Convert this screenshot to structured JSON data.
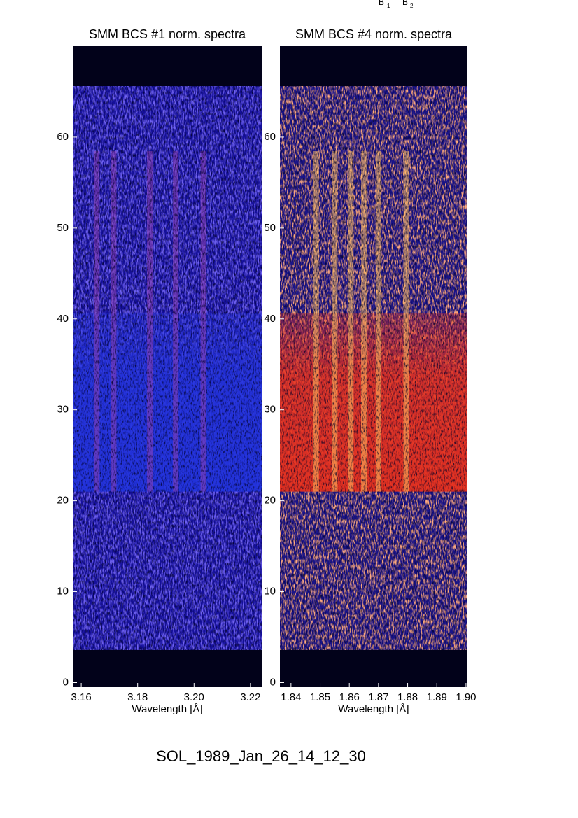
{
  "page_title": "SOL_1989_Jan_26_14_12_30",
  "annotations": [
    {
      "text": "B",
      "subscript": "1"
    },
    {
      "text": "B",
      "subscript": "2"
    }
  ],
  "chart_data": [
    {
      "type": "heatmap",
      "title": "SMM BCS #1 norm. spectra",
      "x_label": "Wavelength [Å]",
      "xlim": [
        3.157,
        3.224
      ],
      "xticks": [
        3.16,
        3.18,
        {
          "value": 3.2,
          "label": "3.20"
        },
        3.22
      ],
      "ylim": [
        -0.5,
        70
      ],
      "yticks": [
        0,
        10,
        20,
        30,
        40,
        50,
        60
      ],
      "observed_y": [
        3.6,
        65.6
      ],
      "flare_y": [
        21,
        36
      ],
      "line_centers": [
        3.1655,
        3.1715,
        3.1843,
        3.1935,
        3.2033
      ],
      "noise_color": "#2a1ee0",
      "flare_color": "#2233dd",
      "line_color": "#9040b0"
    },
    {
      "type": "heatmap",
      "title": "SMM BCS #4 norm. spectra",
      "x_label": "Wavelength [Å]",
      "xlim": [
        1.8362,
        1.9005
      ],
      "xticks": [
        1.84,
        1.85,
        1.86,
        1.87,
        1.88,
        1.89,
        {
          "value": 1.9,
          "label": "1.90"
        }
      ],
      "ylim": [
        -0.5,
        70
      ],
      "yticks": [
        0,
        10,
        20,
        30,
        40,
        50,
        60
      ],
      "observed_y": [
        3.6,
        65.6
      ],
      "flare_y": [
        21,
        36
      ],
      "line_centers": [
        1.8486,
        1.855,
        1.8605,
        1.865,
        1.87,
        1.8795
      ],
      "noise_color": "#ff5a2a",
      "flare_color": "#e8301c",
      "line_color": "#ffc060"
    }
  ]
}
